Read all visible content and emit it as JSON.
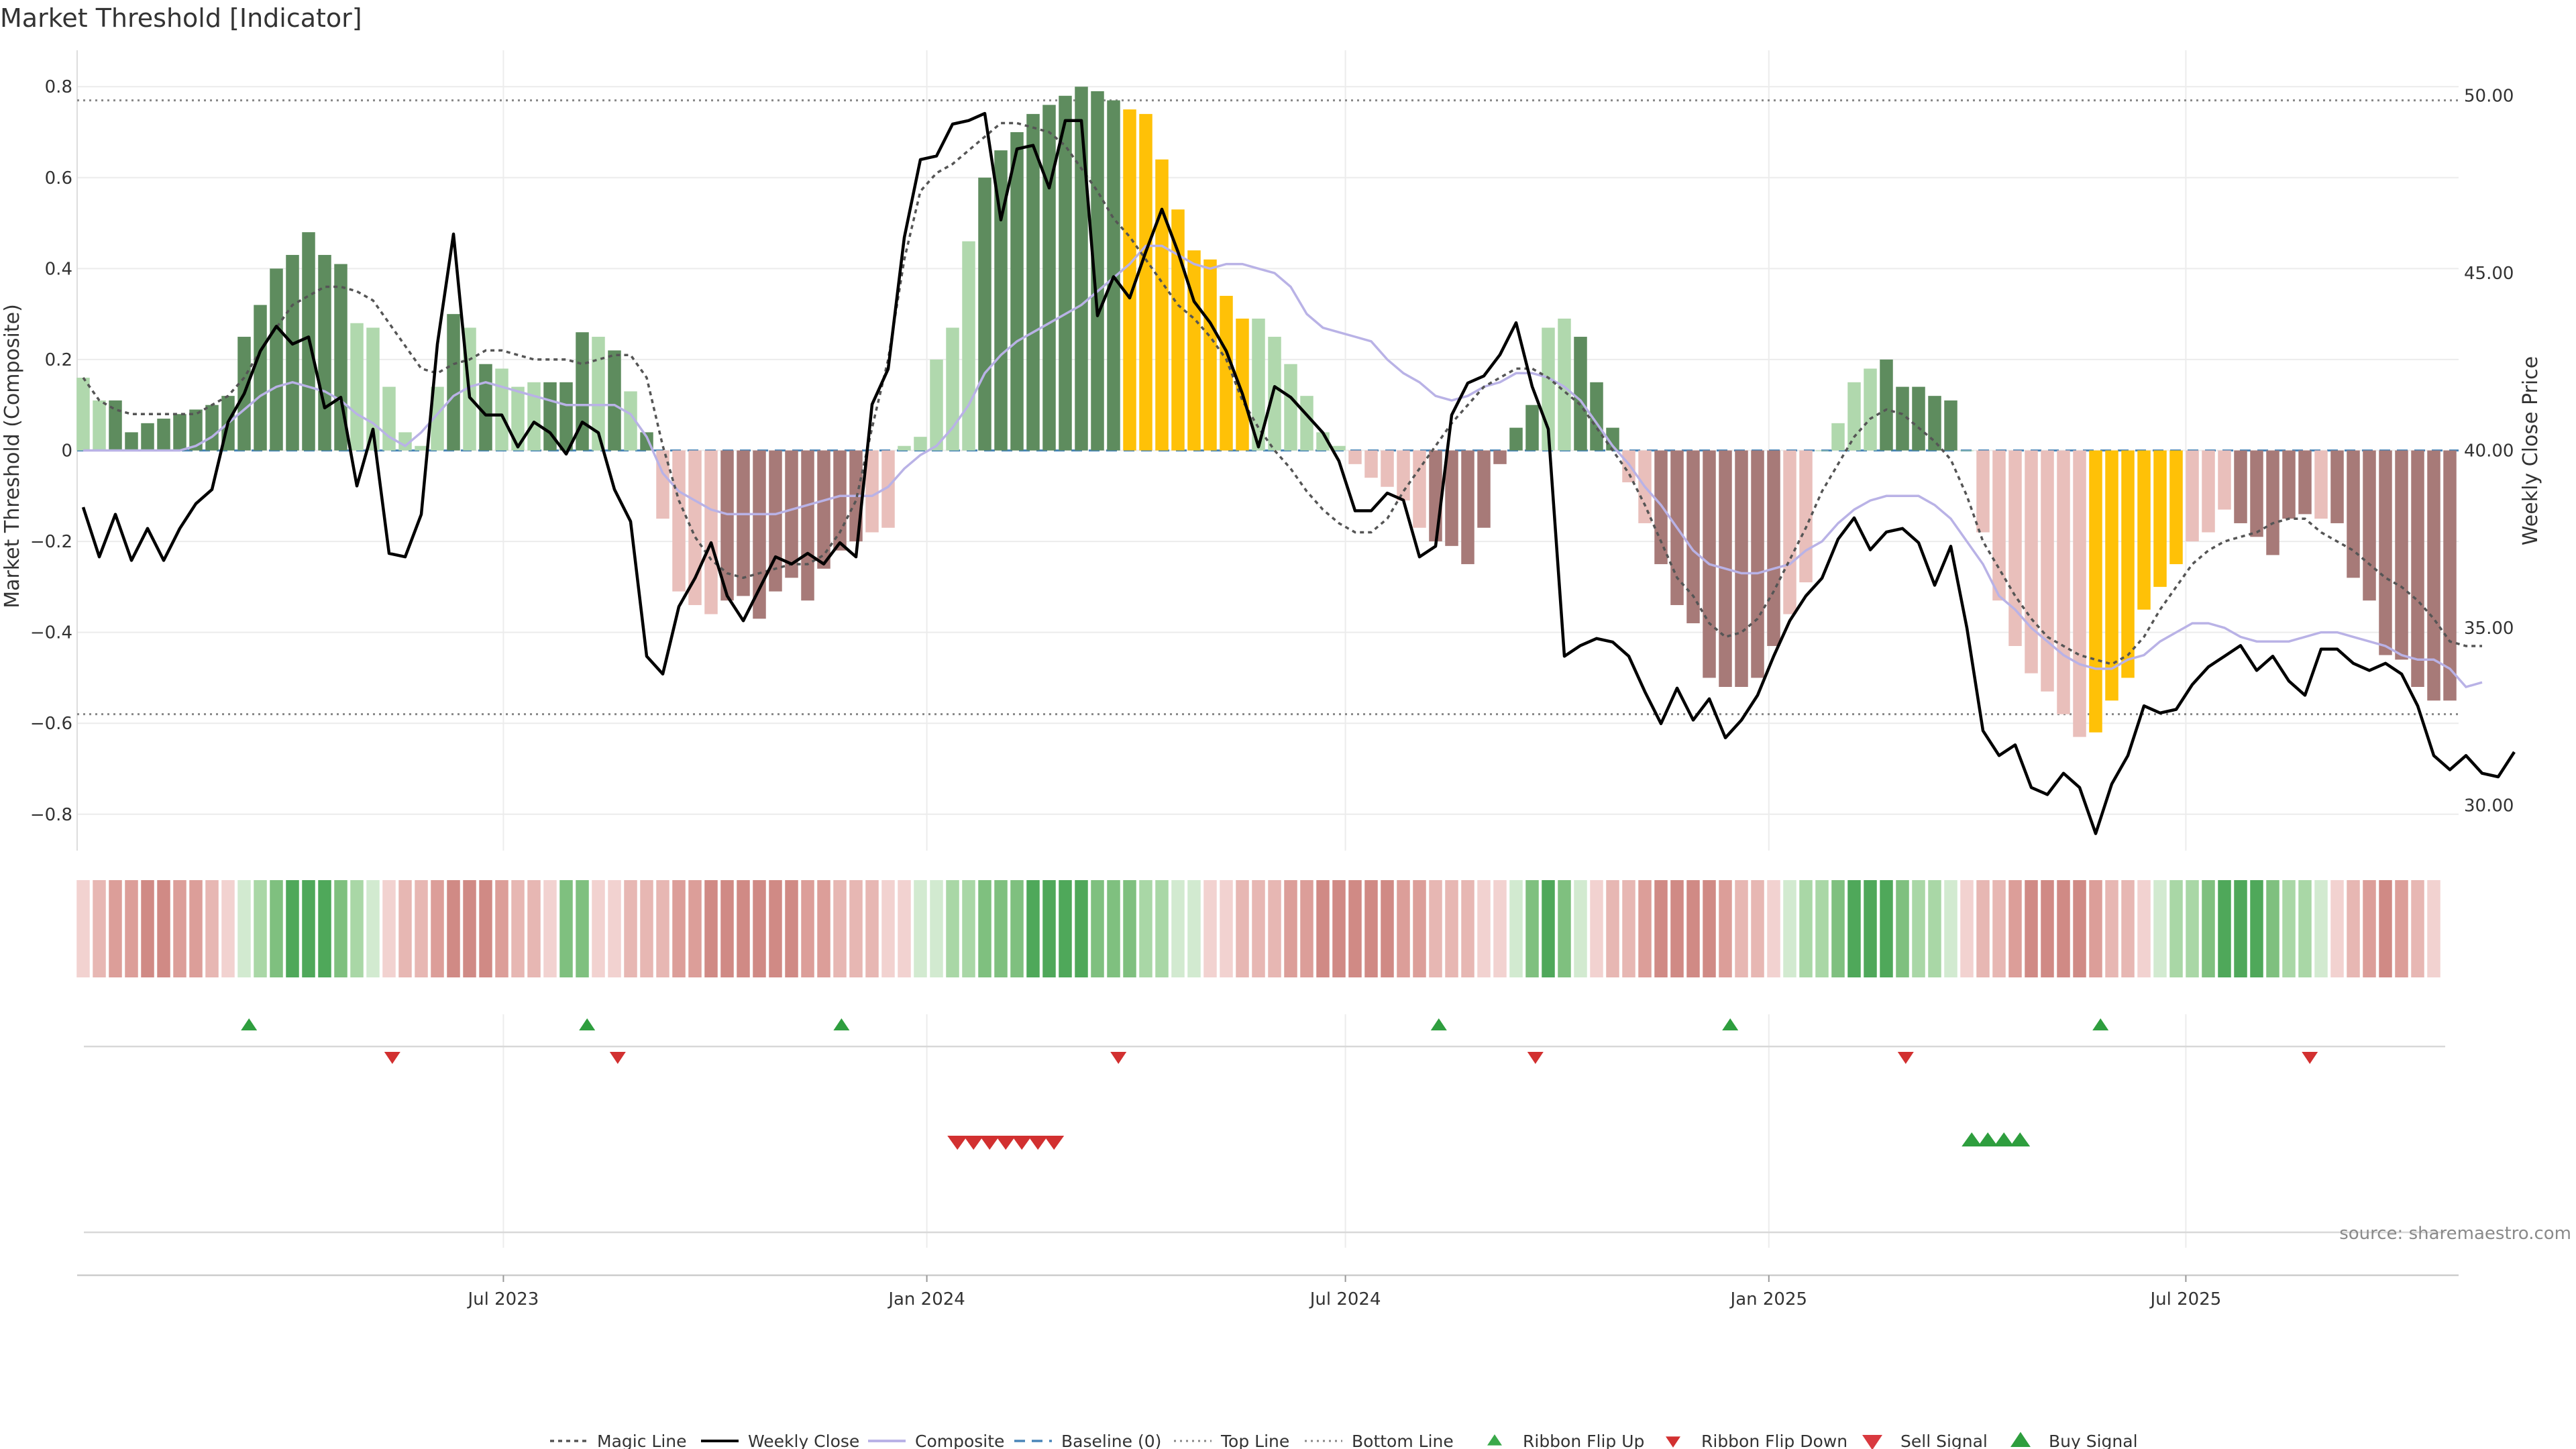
{
  "title": "Market Threshold [Indicator]",
  "source": "source: sharemaestro.com",
  "colors": {
    "bull_dark": "#5e8c5e",
    "bull_light": "#b0d8ad",
    "bear_dark": "#a77a78",
    "bear_light": "#e9bfbb",
    "extreme": "#ffc107",
    "close": "#000000",
    "composite": "#b9b2e6",
    "magic": "#555555",
    "baseline": "#4a86b8",
    "ribbon_green": "#3a9e4a",
    "ribbon_red": "#d07a7a",
    "up_marker": "#2e9e3e",
    "down_marker": "#d23030"
  },
  "chart_data": {
    "type": "bar",
    "title": "Market Threshold [Indicator]",
    "ylabel": "Market Threshold (Composite)",
    "y2label": "Weekly Close Price",
    "ylim": [
      -0.88,
      0.88
    ],
    "y2lim": [
      28.72,
      51.28
    ],
    "yticks": [
      "0.8",
      "0.6",
      "0.4",
      "0.2",
      "0",
      "−0.2",
      "−0.4",
      "−0.6",
      "−0.8"
    ],
    "y2ticks": [
      "50.00",
      "45.00",
      "40.00",
      "35.00",
      "30.00"
    ],
    "xticks": [
      {
        "label": "Jul 2023",
        "week": 26.1
      },
      {
        "label": "Jan 2024",
        "week": 52.4
      },
      {
        "label": "Jul 2024",
        "week": 78.4
      },
      {
        "label": "Jan 2025",
        "week": 104.7
      },
      {
        "label": "Jul 2025",
        "week": 130.6
      }
    ],
    "top_line": 0.77,
    "bottom_line": -0.58,
    "bars": [
      0.16,
      0.11,
      0.11,
      0.04,
      0.06,
      0.07,
      0.08,
      0.09,
      0.1,
      0.12,
      0.25,
      0.32,
      0.4,
      0.43,
      0.48,
      0.43,
      0.41,
      0.28,
      0.27,
      0.14,
      0.04,
      0.01,
      0.14,
      0.3,
      0.27,
      0.19,
      0.18,
      0.14,
      0.15,
      0.15,
      0.15,
      0.26,
      0.25,
      0.22,
      0.13,
      0.04,
      -0.15,
      -0.31,
      -0.34,
      -0.36,
      -0.33,
      -0.32,
      -0.37,
      -0.31,
      -0.28,
      -0.33,
      -0.26,
      -0.22,
      -0.2,
      -0.18,
      -0.17,
      0.01,
      0.03,
      0.2,
      0.27,
      0.46,
      0.6,
      0.66,
      0.7,
      0.74,
      0.76,
      0.78,
      0.8,
      0.79,
      0.77,
      0.75,
      0.74,
      0.64,
      0.53,
      0.44,
      0.42,
      0.34,
      0.29,
      0.29,
      0.25,
      0.19,
      0.12,
      0.04,
      0.01,
      -0.03,
      -0.06,
      -0.08,
      -0.11,
      -0.17,
      -0.2,
      -0.21,
      -0.25,
      -0.17,
      -0.03,
      0.05,
      0.1,
      0.27,
      0.29,
      0.25,
      0.15,
      0.05,
      -0.07,
      -0.16,
      -0.25,
      -0.34,
      -0.38,
      -0.5,
      -0.52,
      -0.52,
      -0.5,
      -0.43,
      -0.36,
      -0.29,
      0.0,
      0.06,
      0.15,
      0.18,
      0.2,
      0.14,
      0.14,
      0.12,
      0.11,
      0.0,
      -0.18,
      -0.33,
      -0.43,
      -0.49,
      -0.53,
      -0.58,
      -0.63,
      -0.62,
      -0.55,
      -0.5,
      -0.35,
      -0.3,
      -0.25,
      -0.2,
      -0.18,
      -0.13,
      -0.16,
      -0.19,
      -0.23,
      -0.15,
      -0.14,
      -0.15,
      -0.16,
      -0.28,
      -0.33,
      -0.45,
      -0.46,
      -0.52,
      -0.55,
      -0.55
    ],
    "bar_shade": "lldddddddddddddddlllllldldllldddldldlllldddddddddllllllldddddddddeeeeeeeellllllllllldddddddlldddllddddddddlllllldddddlllllllleeeeeellldddddldddddddddddl",
    "close": [
      38.4,
      37.0,
      38.2,
      36.9,
      37.8,
      36.9,
      37.8,
      38.5,
      38.9,
      40.8,
      41.6,
      42.8,
      43.5,
      43.0,
      43.2,
      41.2,
      41.5,
      39.0,
      40.6,
      37.1,
      37.0,
      38.2,
      43.0,
      46.1,
      41.5,
      41.0,
      41.0,
      40.1,
      40.8,
      40.5,
      39.9,
      40.8,
      40.5,
      38.9,
      38.0,
      34.2,
      33.7,
      35.6,
      36.4,
      37.4,
      35.9,
      35.2,
      36.1,
      37.0,
      36.8,
      37.1,
      36.8,
      37.4,
      37.0,
      41.3,
      42.3,
      46.0,
      48.2,
      48.3,
      49.2,
      49.3,
      49.5,
      46.5,
      48.5,
      48.6,
      47.4,
      49.3,
      49.3,
      43.8,
      44.9,
      44.3,
      45.6,
      46.8,
      45.6,
      44.2,
      43.6,
      42.8,
      41.6,
      40.1,
      41.8,
      41.5,
      41.0,
      40.5,
      39.7,
      38.3,
      38.3,
      38.8,
      38.6,
      37.0,
      37.3,
      41.0,
      41.9,
      42.1,
      42.7,
      43.6,
      41.8,
      40.6,
      34.2,
      34.5,
      34.7,
      34.6,
      34.2,
      33.2,
      32.3,
      33.3,
      32.4,
      33.0,
      31.9,
      32.4,
      33.1,
      34.2,
      35.2,
      35.9,
      36.4,
      37.5,
      38.1,
      37.2,
      37.7,
      37.8,
      37.4,
      36.2,
      37.3,
      35.0,
      32.1,
      31.4,
      31.7,
      30.5,
      30.3,
      30.9,
      30.5,
      29.2,
      30.6,
      31.4,
      32.8,
      32.6,
      32.7,
      33.4,
      33.9,
      34.2,
      34.5,
      33.8,
      34.2,
      33.5,
      33.1,
      34.4,
      34.4,
      34.0,
      33.8,
      34.0,
      33.7,
      32.8,
      31.4,
      31.0,
      31.4,
      30.9,
      30.8,
      31.5
    ],
    "composite": [
      0.0,
      0.0,
      0.0,
      0.0,
      0.0,
      0.0,
      0.0,
      0.01,
      0.03,
      0.06,
      0.09,
      0.12,
      0.14,
      0.15,
      0.14,
      0.13,
      0.11,
      0.08,
      0.06,
      0.03,
      0.01,
      0.04,
      0.08,
      0.12,
      0.14,
      0.15,
      0.14,
      0.13,
      0.12,
      0.11,
      0.1,
      0.1,
      0.1,
      0.1,
      0.08,
      0.03,
      -0.05,
      -0.09,
      -0.11,
      -0.13,
      -0.14,
      -0.14,
      -0.14,
      -0.14,
      -0.13,
      -0.12,
      -0.11,
      -0.1,
      -0.1,
      -0.1,
      -0.08,
      -0.04,
      -0.01,
      0.01,
      0.05,
      0.1,
      0.17,
      0.21,
      0.24,
      0.26,
      0.28,
      0.3,
      0.32,
      0.35,
      0.38,
      0.41,
      0.45,
      0.45,
      0.43,
      0.41,
      0.4,
      0.41,
      0.41,
      0.4,
      0.39,
      0.36,
      0.3,
      0.27,
      0.26,
      0.25,
      0.24,
      0.2,
      0.17,
      0.15,
      0.12,
      0.11,
      0.12,
      0.14,
      0.15,
      0.17,
      0.17,
      0.16,
      0.14,
      0.11,
      0.06,
      0.01,
      -0.03,
      -0.08,
      -0.12,
      -0.17,
      -0.22,
      -0.25,
      -0.26,
      -0.27,
      -0.27,
      -0.26,
      -0.25,
      -0.22,
      -0.2,
      -0.16,
      -0.13,
      -0.11,
      -0.1,
      -0.1,
      -0.1,
      -0.12,
      -0.15,
      -0.2,
      -0.25,
      -0.32,
      -0.35,
      -0.39,
      -0.42,
      -0.45,
      -0.47,
      -0.48,
      -0.48,
      -0.46,
      -0.45,
      -0.42,
      -0.4,
      -0.38,
      -0.38,
      -0.39,
      -0.41,
      -0.42,
      -0.42,
      -0.42,
      -0.41,
      -0.4,
      -0.4,
      -0.41,
      -0.42,
      -0.43,
      -0.45,
      -0.46,
      -0.46,
      -0.48,
      -0.52,
      -0.51
    ],
    "magic": [
      0.16,
      0.11,
      0.09,
      0.08,
      0.08,
      0.08,
      0.08,
      0.08,
      0.1,
      0.12,
      0.16,
      0.22,
      0.27,
      0.32,
      0.34,
      0.36,
      0.36,
      0.35,
      0.33,
      0.28,
      0.23,
      0.18,
      0.17,
      0.19,
      0.2,
      0.22,
      0.22,
      0.21,
      0.2,
      0.2,
      0.2,
      0.19,
      0.2,
      0.21,
      0.21,
      0.16,
      0.01,
      -0.11,
      -0.19,
      -0.24,
      -0.27,
      -0.28,
      -0.27,
      -0.26,
      -0.25,
      -0.25,
      -0.23,
      -0.18,
      -0.11,
      0.05,
      0.2,
      0.42,
      0.57,
      0.61,
      0.63,
      0.66,
      0.69,
      0.72,
      0.72,
      0.71,
      0.7,
      0.67,
      0.62,
      0.57,
      0.51,
      0.47,
      0.42,
      0.37,
      0.32,
      0.29,
      0.25,
      0.2,
      0.11,
      0.05,
      0.0,
      -0.04,
      -0.09,
      -0.13,
      -0.16,
      -0.18,
      -0.18,
      -0.15,
      -0.09,
      -0.04,
      0.01,
      0.06,
      0.1,
      0.14,
      0.16,
      0.18,
      0.18,
      0.16,
      0.13,
      0.1,
      0.05,
      0.0,
      -0.05,
      -0.12,
      -0.2,
      -0.28,
      -0.32,
      -0.38,
      -0.41,
      -0.4,
      -0.37,
      -0.31,
      -0.24,
      -0.17,
      -0.09,
      -0.03,
      0.03,
      0.07,
      0.09,
      0.08,
      0.05,
      0.02,
      -0.02,
      -0.1,
      -0.2,
      -0.26,
      -0.32,
      -0.37,
      -0.41,
      -0.43,
      -0.45,
      -0.46,
      -0.47,
      -0.45,
      -0.41,
      -0.35,
      -0.3,
      -0.25,
      -0.22,
      -0.2,
      -0.19,
      -0.18,
      -0.16,
      -0.15,
      -0.15,
      -0.18,
      -0.2,
      -0.22,
      -0.25,
      -0.28,
      -0.3,
      -0.33,
      -0.37,
      -0.42,
      -0.43,
      -0.43
    ],
    "ribbon": "rrrrrrrrrrgggggggggrrrrrrrrrrrggrrrrrrrrrrrrrrrrrrrrggggggggggggggggggrrrrrrrrrrrrrrrrrrrgggggrrrrrrrrrrrrgggggggggggrrrrrrrrrrrrgggggggggggrrrrrrr",
    "ribbon_flip_up": [
      10.3,
      31.3,
      47.1,
      84.2,
      102.3,
      125.3
    ],
    "ribbon_flip_down": [
      19.2,
      33.2,
      64.3,
      90.2,
      113.2,
      138.3
    ],
    "sell_signals": [
      54.3,
      55.3,
      56.3,
      57.3,
      58.3,
      59.3,
      60.3
    ],
    "buy_signals": [
      117.3,
      118.3,
      119.3,
      120.3
    ]
  },
  "legend": [
    {
      "label": "Magic Line",
      "symbol": "dotted-line"
    },
    {
      "label": "Weekly Close",
      "symbol": "solid-line"
    },
    {
      "label": "Composite",
      "symbol": "lavender-line"
    },
    {
      "label": "Baseline (0)",
      "symbol": "dashed-line"
    },
    {
      "label": "Top Line",
      "symbol": "fine-dotted-line"
    },
    {
      "label": "Bottom Line",
      "symbol": "fine-dotted-line"
    },
    {
      "label": "Ribbon Flip Up",
      "symbol": "triangle-up"
    },
    {
      "label": "Ribbon Flip Down",
      "symbol": "triangle-down"
    },
    {
      "label": "Sell Signal",
      "symbol": "triangle-down"
    },
    {
      "label": "Buy Signal",
      "symbol": "triangle-up"
    }
  ]
}
